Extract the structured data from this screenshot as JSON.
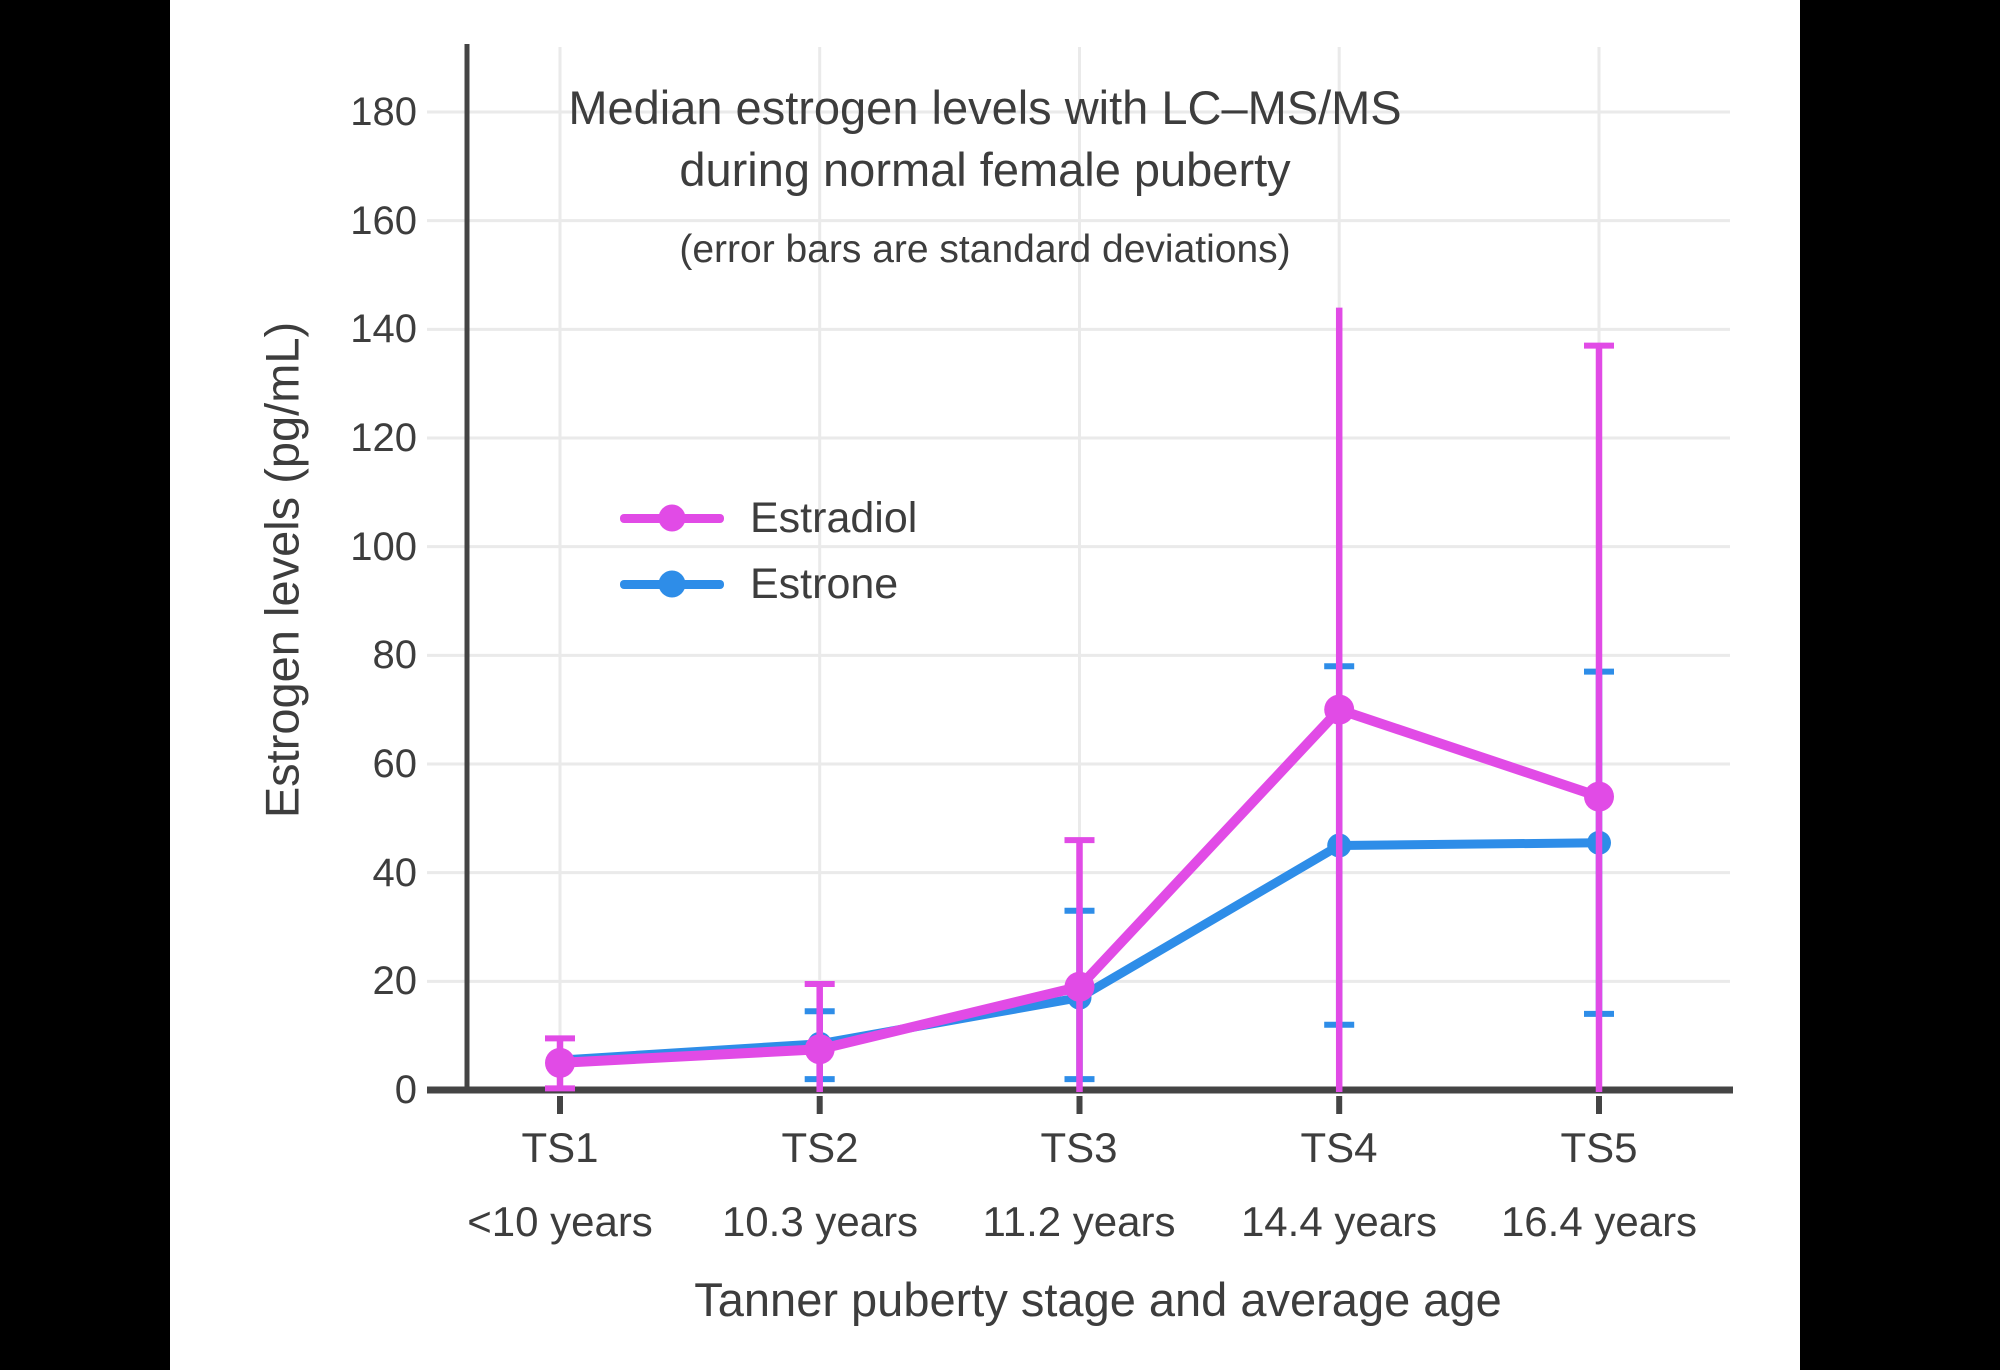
{
  "chart_data": {
    "type": "line",
    "title": "Median estrogen levels with LC–MS/MS",
    "title_line2": "during normal female puberty",
    "subtitle": "(error bars are standard deviations)",
    "xlabel": "Tanner puberty stage and average age",
    "ylabel": "Estrogen levels (pg/mL)",
    "x_categories": [
      "TS1",
      "TS2",
      "TS3",
      "TS4",
      "TS5"
    ],
    "x_sub_labels": [
      "<10 years",
      "10.3 years",
      "11.2 years",
      "14.4 years",
      "16.4 years"
    ],
    "ylim": [
      0,
      192
    ],
    "ytick_values": [
      0,
      20,
      40,
      60,
      80,
      100,
      120,
      140,
      160,
      180
    ],
    "ytick_labels": [
      "0",
      "20",
      "40",
      "60",
      "80",
      "100",
      "120",
      "140",
      "160",
      "180"
    ],
    "grid": true,
    "legend_position": "inside-upper-left",
    "series": [
      {
        "name": "Estrone",
        "color": "#2E8DE8",
        "values": [
          5.5,
          8.5,
          17,
          45,
          45.5
        ],
        "err_high": [
          null,
          14.5,
          33,
          78,
          77
        ],
        "err_low": [
          null,
          2,
          2,
          12,
          14
        ],
        "err_high_cap": [
          false,
          true,
          true,
          true,
          true
        ],
        "marker_radius": 12,
        "line_width": 9
      },
      {
        "name": "Estradiol",
        "color": "#E14BE6",
        "values": [
          5,
          7.5,
          19,
          70,
          54
        ],
        "err_high": [
          9.5,
          19.5,
          46,
          144,
          137
        ],
        "err_low": [
          0.3,
          -4.5,
          -8,
          -4,
          -30
        ],
        "err_high_cap": [
          true,
          true,
          true,
          false,
          true
        ],
        "marker_radius": 15,
        "line_width": 10
      }
    ]
  },
  "legend": {
    "items": [
      {
        "label": "Estradiol",
        "color": "#E14BE6"
      },
      {
        "label": "Estrone",
        "color": "#2E8DE8"
      }
    ]
  },
  "style": {
    "text_color": "#3d3d3d",
    "axis_color": "#444444",
    "grid_color": "#eaeaea",
    "panel_bg": "#ffffff",
    "frame_bg": "#000000"
  }
}
